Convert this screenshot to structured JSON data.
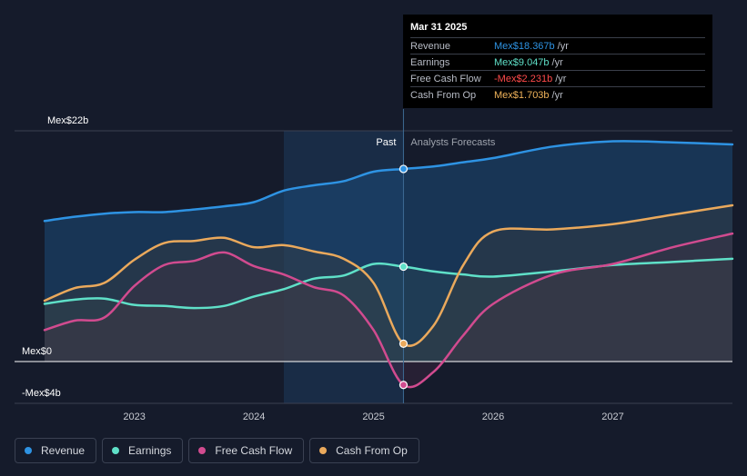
{
  "tooltip": {
    "date": "Mar 31 2025",
    "unit": "/yr",
    "rows": [
      {
        "label": "Revenue",
        "value": "Mex$18.367b",
        "color": "#2e93e3"
      },
      {
        "label": "Earnings",
        "value": "Mex$9.047b",
        "color": "#5fe0c8"
      },
      {
        "label": "Free Cash Flow",
        "value": "-Mex$2.231b",
        "color": "#ff4a4a"
      },
      {
        "label": "Cash From Op",
        "value": "Mex$1.703b",
        "color": "#f0b35a"
      }
    ]
  },
  "legend": [
    {
      "label": "Revenue",
      "color": "#2e93e3"
    },
    {
      "label": "Earnings",
      "color": "#5fe0c8"
    },
    {
      "label": "Free Cash Flow",
      "color": "#d14b8f"
    },
    {
      "label": "Cash From Op",
      "color": "#eaa95c"
    }
  ],
  "chart_data": {
    "type": "line",
    "y_labels": [
      "Mex$22b",
      "Mex$0",
      "-Mex$4b"
    ],
    "ylim": [
      -4,
      22
    ],
    "x_ticks": [
      {
        "label": "2023",
        "x": 2023
      },
      {
        "label": "2024",
        "x": 2024
      },
      {
        "label": "2025",
        "x": 2025
      },
      {
        "label": "2026",
        "x": 2026
      },
      {
        "label": "2027",
        "x": 2027
      }
    ],
    "xlim": [
      2022.25,
      2028.0
    ],
    "past_label": "Past",
    "forecast_label": "Analysts Forecasts",
    "divider_x": 2025.25,
    "past_region_start": 2024.25,
    "series": [
      {
        "name": "Revenue",
        "color": "#2e93e3",
        "points": [
          [
            2022.25,
            13.4
          ],
          [
            2022.5,
            13.8
          ],
          [
            2022.75,
            14.1
          ],
          [
            2023.0,
            14.25
          ],
          [
            2023.25,
            14.25
          ],
          [
            2023.5,
            14.5
          ],
          [
            2023.75,
            14.8
          ],
          [
            2024.0,
            15.2
          ],
          [
            2024.25,
            16.3
          ],
          [
            2024.5,
            16.8
          ],
          [
            2024.75,
            17.2
          ],
          [
            2025.0,
            18.1
          ],
          [
            2025.25,
            18.367
          ],
          [
            2025.5,
            18.6
          ],
          [
            2025.75,
            19.0
          ],
          [
            2026.0,
            19.4
          ],
          [
            2026.5,
            20.5
          ],
          [
            2027.0,
            21.0
          ],
          [
            2027.5,
            20.9
          ],
          [
            2028.0,
            20.7
          ]
        ],
        "marker": [
          2025.25,
          18.367
        ]
      },
      {
        "name": "Earnings",
        "color": "#5fe0c8",
        "points": [
          [
            2022.25,
            5.5
          ],
          [
            2022.5,
            5.9
          ],
          [
            2022.75,
            6.0
          ],
          [
            2023.0,
            5.4
          ],
          [
            2023.25,
            5.3
          ],
          [
            2023.5,
            5.1
          ],
          [
            2023.75,
            5.3
          ],
          [
            2024.0,
            6.2
          ],
          [
            2024.25,
            6.9
          ],
          [
            2024.5,
            7.9
          ],
          [
            2024.75,
            8.2
          ],
          [
            2025.0,
            9.3
          ],
          [
            2025.25,
            9.047
          ],
          [
            2025.5,
            8.6
          ],
          [
            2025.75,
            8.3
          ],
          [
            2026.0,
            8.1
          ],
          [
            2026.5,
            8.6
          ],
          [
            2027.0,
            9.2
          ],
          [
            2027.5,
            9.5
          ],
          [
            2028.0,
            9.8
          ]
        ],
        "marker": [
          2025.25,
          9.047
        ]
      },
      {
        "name": "Free Cash Flow",
        "color": "#d14b8f",
        "points": [
          [
            2022.25,
            3.0
          ],
          [
            2022.5,
            3.9
          ],
          [
            2022.75,
            4.2
          ],
          [
            2023.0,
            7.2
          ],
          [
            2023.25,
            9.2
          ],
          [
            2023.5,
            9.6
          ],
          [
            2023.75,
            10.4
          ],
          [
            2024.0,
            9.1
          ],
          [
            2024.25,
            8.3
          ],
          [
            2024.5,
            7.1
          ],
          [
            2024.75,
            6.3
          ],
          [
            2025.0,
            3.0
          ],
          [
            2025.25,
            -2.231
          ],
          [
            2025.5,
            -1.0
          ],
          [
            2025.75,
            2.5
          ],
          [
            2026.0,
            5.5
          ],
          [
            2026.5,
            8.3
          ],
          [
            2027.0,
            9.3
          ],
          [
            2027.5,
            10.9
          ],
          [
            2028.0,
            12.2
          ]
        ],
        "marker": [
          2025.25,
          -2.231
        ]
      },
      {
        "name": "Cash From Op",
        "color": "#eaa95c",
        "points": [
          [
            2022.25,
            5.8
          ],
          [
            2022.5,
            7.0
          ],
          [
            2022.75,
            7.5
          ],
          [
            2023.0,
            9.7
          ],
          [
            2023.25,
            11.3
          ],
          [
            2023.5,
            11.5
          ],
          [
            2023.75,
            11.8
          ],
          [
            2024.0,
            10.9
          ],
          [
            2024.25,
            11.1
          ],
          [
            2024.5,
            10.5
          ],
          [
            2024.75,
            9.8
          ],
          [
            2025.0,
            7.5
          ],
          [
            2025.25,
            1.703
          ],
          [
            2025.5,
            3.4
          ],
          [
            2025.75,
            9.2
          ],
          [
            2026.0,
            12.4
          ],
          [
            2026.5,
            12.6
          ],
          [
            2027.0,
            13.1
          ],
          [
            2027.5,
            14.0
          ],
          [
            2028.0,
            14.9
          ]
        ],
        "marker": [
          2025.25,
          1.703
        ]
      }
    ]
  }
}
